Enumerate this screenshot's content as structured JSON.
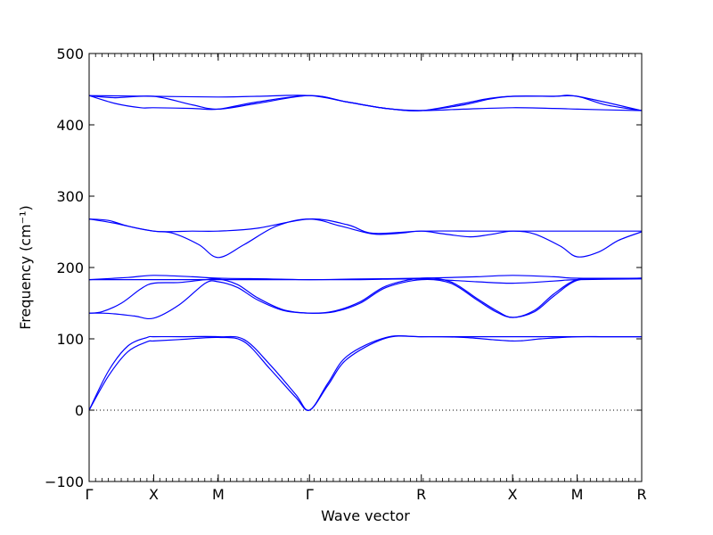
{
  "chart_data": {
    "type": "line",
    "xlabel": "Wave vector",
    "ylabel": "Frequency (cm⁻¹)",
    "ylim": [
      -100,
      500
    ],
    "yticks": [
      -100,
      0,
      100,
      200,
      300,
      400,
      500
    ],
    "xticks": [
      {
        "label": "Γ",
        "pos": 0.0
      },
      {
        "label": "X",
        "pos": 0.5
      },
      {
        "label": "M",
        "pos": 1.0
      },
      {
        "label": "Γ",
        "pos": 1.707
      },
      {
        "label": "R",
        "pos": 2.573
      },
      {
        "label": "X",
        "pos": 3.28
      },
      {
        "label": "M",
        "pos": 3.78
      },
      {
        "label": "R",
        "pos": 4.28
      }
    ],
    "xlim": [
      0,
      4.28
    ],
    "zero_line": true,
    "series_color": "#0000ff",
    "series": [
      {
        "x": [
          0,
          0.15,
          0.3,
          0.45,
          0.5,
          0.7,
          1.0,
          1.2,
          1.4,
          1.6,
          1.707,
          1.85,
          2.0,
          2.3,
          2.573,
          2.9,
          3.28,
          3.5,
          3.78,
          4.0,
          4.28
        ],
        "values": [
          0,
          48,
          82,
          96,
          97,
          99,
          102,
          96,
          58,
          18,
          0,
          35,
          72,
          101,
          103,
          102,
          97,
          100,
          103,
          103,
          103
        ]
      },
      {
        "x": [
          0,
          0.15,
          0.3,
          0.45,
          0.5,
          0.7,
          1.0,
          1.2,
          1.4,
          1.6,
          1.707,
          1.85,
          2.0,
          2.3,
          2.573,
          2.9,
          3.28,
          3.5,
          3.78,
          4.0,
          4.28
        ],
        "values": [
          0,
          55,
          90,
          102,
          103,
          103,
          103,
          99,
          64,
          22,
          0,
          38,
          76,
          102,
          103,
          103,
          103,
          103,
          103,
          103,
          103
        ]
      },
      {
        "x": [
          0,
          0.1,
          0.2,
          0.35,
          0.5,
          0.7,
          0.9,
          1.0,
          1.15,
          1.3,
          1.5,
          1.707,
          1.9,
          2.1,
          2.3,
          2.573,
          2.8,
          3.0,
          3.15,
          3.28,
          3.45,
          3.6,
          3.78,
          4.0,
          4.28
        ],
        "values": [
          136,
          136,
          135,
          132,
          129,
          148,
          178,
          180,
          172,
          155,
          140,
          136,
          138,
          150,
          172,
          183,
          178,
          155,
          138,
          130,
          138,
          160,
          182,
          184,
          185
        ]
      },
      {
        "x": [
          0,
          0.1,
          0.25,
          0.4,
          0.5,
          0.7,
          0.9,
          1.0,
          1.15,
          1.3,
          1.5,
          1.707,
          1.9,
          2.1,
          2.3,
          2.573,
          2.8,
          3.0,
          3.15,
          3.28,
          3.45,
          3.6,
          3.78,
          4.0,
          4.28
        ],
        "values": [
          136,
          138,
          150,
          170,
          178,
          179,
          183,
          184,
          176,
          158,
          141,
          136,
          139,
          152,
          174,
          185,
          180,
          157,
          140,
          130,
          140,
          163,
          183,
          184,
          185
        ]
      },
      {
        "x": [
          0,
          0.3,
          0.5,
          0.8,
          1.0,
          1.4,
          1.707,
          2.1,
          2.573,
          3.0,
          3.28,
          3.6,
          3.78,
          4.28
        ],
        "values": [
          183,
          183,
          183,
          183,
          183,
          183,
          183,
          183,
          184,
          180,
          178,
          181,
          183,
          184
        ]
      },
      {
        "x": [
          0,
          0.3,
          0.5,
          0.8,
          1.0,
          1.4,
          1.707,
          2.1,
          2.573,
          3.0,
          3.28,
          3.6,
          3.78,
          4.28
        ],
        "values": [
          183,
          186,
          189,
          187,
          185,
          184,
          183,
          184,
          185,
          187,
          189,
          187,
          185,
          185
        ]
      },
      {
        "x": [
          0,
          0.15,
          0.3,
          0.5,
          0.65,
          0.85,
          1.0,
          1.2,
          1.45,
          1.707,
          1.95,
          2.2,
          2.4,
          2.573,
          2.75,
          2.95,
          3.1,
          3.28,
          3.45,
          3.65,
          3.78,
          3.95,
          4.1,
          4.28
        ],
        "values": [
          268,
          266,
          258,
          251,
          248,
          232,
          214,
          232,
          258,
          268,
          258,
          247,
          248,
          251,
          247,
          243,
          246,
          251,
          247,
          230,
          215,
          222,
          238,
          250
        ]
      },
      {
        "x": [
          0,
          0.2,
          0.5,
          0.8,
          1.0,
          1.3,
          1.707,
          2.0,
          2.2,
          2.573,
          3.0,
          3.28,
          3.6,
          3.78,
          4.28
        ],
        "values": [
          268,
          262,
          251,
          251,
          251,
          255,
          268,
          260,
          248,
          251,
          251,
          251,
          251,
          251,
          251
        ]
      },
      {
        "x": [
          0,
          0.2,
          0.5,
          0.8,
          1.0,
          1.3,
          1.707,
          2.0,
          2.3,
          2.573,
          2.9,
          3.1,
          3.28,
          3.6,
          3.78,
          4.0,
          4.28
        ],
        "values": [
          441,
          438,
          440,
          428,
          422,
          430,
          441,
          432,
          423,
          420,
          428,
          436,
          440,
          440,
          440,
          428,
          420
        ]
      },
      {
        "x": [
          0,
          0.2,
          0.4,
          0.5,
          0.8,
          1.0,
          1.3,
          1.707,
          2.0,
          2.3,
          2.573,
          2.9,
          3.28,
          3.6,
          3.78,
          4.0,
          4.28
        ],
        "values": [
          441,
          430,
          424,
          424,
          423,
          422,
          432,
          441,
          432,
          423,
          420,
          422,
          424,
          423,
          422,
          421,
          420
        ]
      },
      {
        "x": [
          0,
          0.5,
          1.0,
          1.3,
          1.707,
          2.0,
          2.3,
          2.573,
          2.9,
          3.1,
          3.28,
          3.6,
          3.78,
          4.28
        ],
        "values": [
          441,
          440,
          439,
          440,
          441,
          432,
          423,
          420,
          430,
          437,
          440,
          440,
          440,
          420
        ]
      }
    ]
  }
}
